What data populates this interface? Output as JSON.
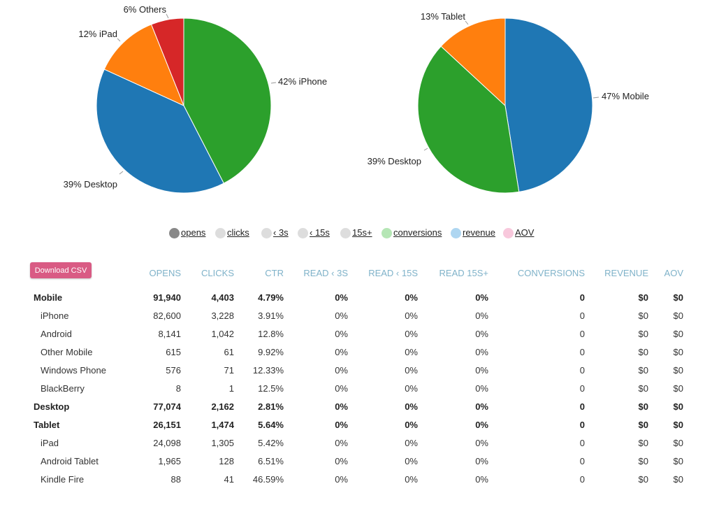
{
  "chart_data": [
    {
      "type": "pie",
      "slices": [
        {
          "label": "iPhone",
          "value": 42,
          "text": "42% iPhone",
          "color": "#2ca02c"
        },
        {
          "label": "Desktop",
          "value": 39,
          "text": "39% Desktop",
          "color": "#1f77b4"
        },
        {
          "label": "iPad",
          "value": 12,
          "text": "12% iPad",
          "color": "#ff7f0e"
        },
        {
          "label": "Others",
          "value": 6,
          "text": "6% Others",
          "color": "#d62728"
        }
      ]
    },
    {
      "type": "pie",
      "slices": [
        {
          "label": "Mobile",
          "value": 47,
          "text": "47% Mobile",
          "color": "#1f77b4"
        },
        {
          "label": "Desktop",
          "value": 39,
          "text": "39% Desktop",
          "color": "#2ca02c"
        },
        {
          "label": "Tablet",
          "value": 13,
          "text": "13% Tablet",
          "color": "#ff7f0e"
        }
      ]
    }
  ],
  "legend": [
    {
      "label": "opens",
      "color": "#888888"
    },
    {
      "label": "clicks",
      "color": "#dddddd"
    },
    {
      "label": "‹ 3s",
      "color": "#dddddd"
    },
    {
      "label": "‹ 15s",
      "color": "#dddddd"
    },
    {
      "label": "15s+",
      "color": "#dddddd"
    },
    {
      "label": "conversions",
      "color": "#b5e6b5"
    },
    {
      "label": "revenue",
      "color": "#aed6f1"
    },
    {
      "label": "AOV",
      "color": "#f8c8dc"
    }
  ],
  "download_label": "Download CSV",
  "table": {
    "headers": [
      "OPENS",
      "CLICKS",
      "CTR",
      "READ ‹ 3s",
      "READ ‹ 15s",
      "READ 15s+",
      "CONVERSIONS",
      "REVENUE",
      "AOV"
    ],
    "rows": [
      {
        "name": "Mobile",
        "bold": true,
        "values": [
          "91,940",
          "4,403",
          "4.79%",
          "0%",
          "0%",
          "0%",
          "0",
          "$0",
          "$0"
        ]
      },
      {
        "name": "iPhone",
        "bold": false,
        "values": [
          "82,600",
          "3,228",
          "3.91%",
          "0%",
          "0%",
          "0%",
          "0",
          "$0",
          "$0"
        ]
      },
      {
        "name": "Android",
        "bold": false,
        "values": [
          "8,141",
          "1,042",
          "12.8%",
          "0%",
          "0%",
          "0%",
          "0",
          "$0",
          "$0"
        ]
      },
      {
        "name": "Other Mobile",
        "bold": false,
        "values": [
          "615",
          "61",
          "9.92%",
          "0%",
          "0%",
          "0%",
          "0",
          "$0",
          "$0"
        ]
      },
      {
        "name": "Windows Phone",
        "bold": false,
        "values": [
          "576",
          "71",
          "12.33%",
          "0%",
          "0%",
          "0%",
          "0",
          "$0",
          "$0"
        ]
      },
      {
        "name": "BlackBerry",
        "bold": false,
        "values": [
          "8",
          "1",
          "12.5%",
          "0%",
          "0%",
          "0%",
          "0",
          "$0",
          "$0"
        ]
      },
      {
        "name": "Desktop",
        "bold": true,
        "values": [
          "77,074",
          "2,162",
          "2.81%",
          "0%",
          "0%",
          "0%",
          "0",
          "$0",
          "$0"
        ]
      },
      {
        "name": "Tablet",
        "bold": true,
        "values": [
          "26,151",
          "1,474",
          "5.64%",
          "0%",
          "0%",
          "0%",
          "0",
          "$0",
          "$0"
        ]
      },
      {
        "name": "iPad",
        "bold": false,
        "values": [
          "24,098",
          "1,305",
          "5.42%",
          "0%",
          "0%",
          "0%",
          "0",
          "$0",
          "$0"
        ]
      },
      {
        "name": "Android Tablet",
        "bold": false,
        "values": [
          "1,965",
          "128",
          "6.51%",
          "0%",
          "0%",
          "0%",
          "0",
          "$0",
          "$0"
        ]
      },
      {
        "name": "Kindle Fire",
        "bold": false,
        "values": [
          "88",
          "41",
          "46.59%",
          "0%",
          "0%",
          "0%",
          "0",
          "$0",
          "$0"
        ]
      }
    ]
  }
}
